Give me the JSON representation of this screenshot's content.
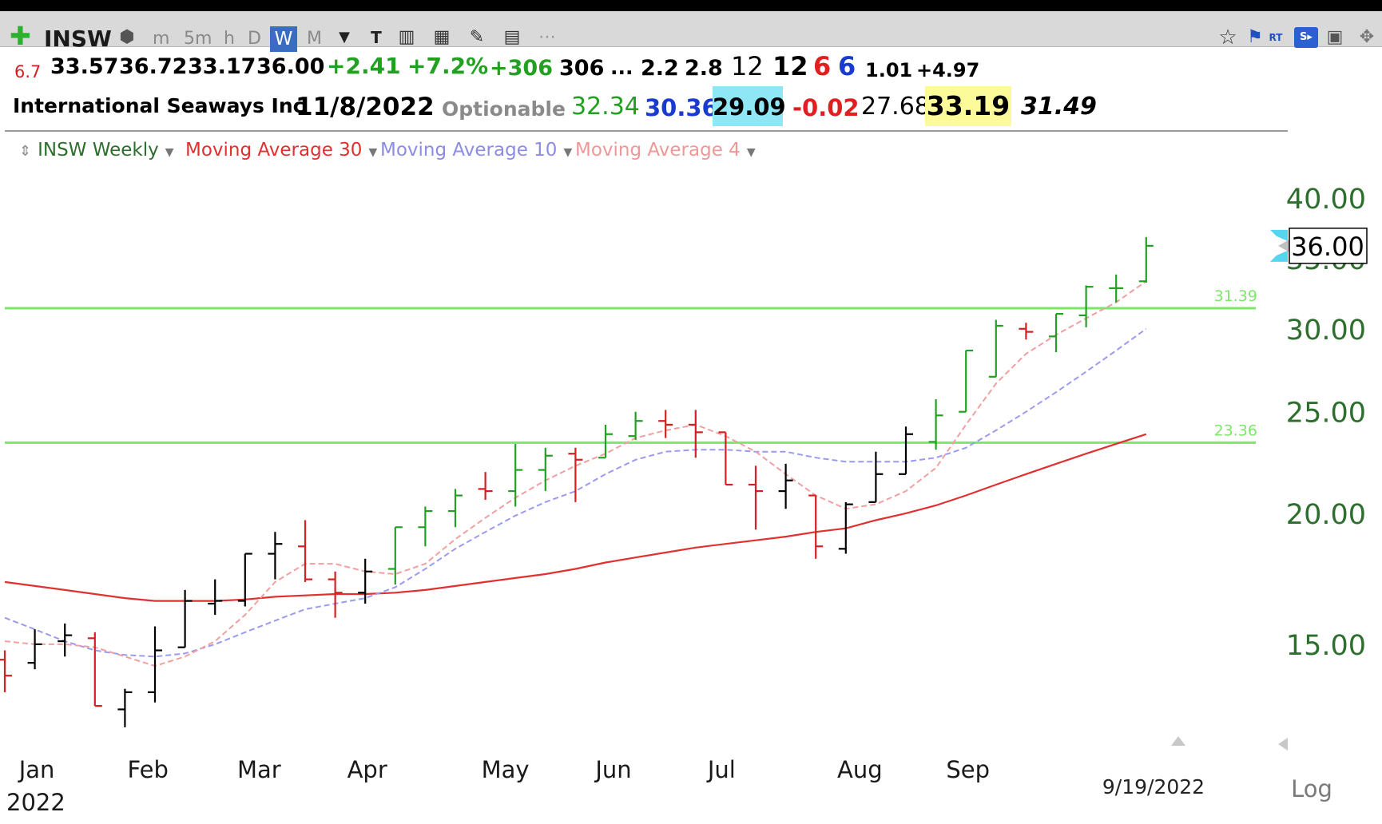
{
  "toolbar": {
    "symbol": "INSW",
    "timeframes": [
      "m",
      "5m",
      "h",
      "D",
      "W",
      "M"
    ],
    "selected_timeframe": "W"
  },
  "quote": {
    "v1": "6.7",
    "open": "33.57",
    "high": "36.72",
    "low": "33.17",
    "close": "36.00",
    "change": "+2.41",
    "change_pct": "+7.2%",
    "v2": "+306",
    "v3": "306",
    "ellipsis": "...",
    "v4": "2.2",
    "v5": "2.8",
    "v6": "12",
    "v7": "12",
    "v8": "6",
    "v9": "6",
    "v10": "1.01",
    "v11": "+4.97",
    "company": "International Seaways Inc",
    "date": "11/8/2022",
    "optionable": "Optionable",
    "w1": "32.34",
    "w2": "30.36",
    "w3": "29.09",
    "w4": "-0.02",
    "w5": "27.68",
    "w6": "33.19",
    "w7": "31.49"
  },
  "legend": {
    "main": "INSW Weekly",
    "ma30": "Moving Average 30",
    "ma10": "Moving Average 10",
    "ma4": "Moving Average 4"
  },
  "colors": {
    "up": "#22a022",
    "down": "#d42020",
    "neutral": "#000000",
    "ma30": "#e03030",
    "ma10": "#9a9af0",
    "ma4": "#f0a0a0",
    "hline": "#7ee66a",
    "axis_text": "#2e6e2e",
    "month_text": "#1a1a1a"
  },
  "chart_data": {
    "type": "ohlc",
    "scale": "log",
    "ylim": [
      12.3,
      43.5
    ],
    "y_ticks": [
      "40.00",
      "35.00",
      "30.00",
      "25.00",
      "20.00",
      "15.00"
    ],
    "last_price_label": "36.00",
    "scale_label": "Log",
    "year_label": "2022",
    "date_label": "9/19/2022",
    "month_labels": [
      "Jan",
      "Feb",
      "Mar",
      "Apr",
      "May",
      "Jun",
      "Jul",
      "Aug",
      "Sep"
    ],
    "horizontal_lines": [
      {
        "value": 31.39,
        "label": "31.39"
      },
      {
        "value": 23.36,
        "label": "23.36"
      }
    ],
    "bars": [
      {
        "o": 14.5,
        "h": 14.8,
        "l": 13.5,
        "c": 14.0,
        "t": "down"
      },
      {
        "o": 14.4,
        "h": 15.5,
        "l": 14.2,
        "c": 15.0,
        "t": "neutral"
      },
      {
        "o": 15.1,
        "h": 15.7,
        "l": 14.6,
        "c": 15.3,
        "t": "neutral"
      },
      {
        "o": 15.2,
        "h": 15.4,
        "l": 13.1,
        "c": 13.1,
        "t": "down"
      },
      {
        "o": 13.0,
        "h": 13.6,
        "l": 12.5,
        "c": 13.5,
        "t": "neutral"
      },
      {
        "o": 13.5,
        "h": 15.6,
        "l": 13.2,
        "c": 14.8,
        "t": "neutral"
      },
      {
        "o": 14.9,
        "h": 16.9,
        "l": 14.9,
        "c": 16.5,
        "t": "neutral"
      },
      {
        "o": 16.4,
        "h": 17.3,
        "l": 16.0,
        "c": 16.5,
        "t": "neutral"
      },
      {
        "o": 16.5,
        "h": 18.3,
        "l": 16.3,
        "c": 18.3,
        "t": "neutral"
      },
      {
        "o": 18.3,
        "h": 19.2,
        "l": 17.3,
        "c": 18.7,
        "t": "neutral"
      },
      {
        "o": 18.6,
        "h": 19.7,
        "l": 17.2,
        "c": 17.3,
        "t": "down"
      },
      {
        "o": 17.3,
        "h": 17.6,
        "l": 15.9,
        "c": 16.8,
        "t": "down"
      },
      {
        "o": 16.8,
        "h": 18.1,
        "l": 16.4,
        "c": 17.6,
        "t": "neutral"
      },
      {
        "o": 17.7,
        "h": 19.4,
        "l": 17.1,
        "c": 19.4,
        "t": "up"
      },
      {
        "o": 19.4,
        "h": 20.3,
        "l": 18.6,
        "c": 20.1,
        "t": "up"
      },
      {
        "o": 20.1,
        "h": 21.1,
        "l": 19.4,
        "c": 20.8,
        "t": "up"
      },
      {
        "o": 21.1,
        "h": 21.9,
        "l": 20.6,
        "c": 21.0,
        "t": "down"
      },
      {
        "o": 21.0,
        "h": 23.3,
        "l": 20.3,
        "c": 22.0,
        "t": "up"
      },
      {
        "o": 22.0,
        "h": 23.1,
        "l": 21.0,
        "c": 22.7,
        "t": "up"
      },
      {
        "o": 22.8,
        "h": 23.1,
        "l": 20.5,
        "c": 22.5,
        "t": "down"
      },
      {
        "o": 22.6,
        "h": 24.3,
        "l": 22.6,
        "c": 23.8,
        "t": "up"
      },
      {
        "o": 23.7,
        "h": 25.0,
        "l": 23.5,
        "c": 24.5,
        "t": "up"
      },
      {
        "o": 24.5,
        "h": 25.1,
        "l": 23.6,
        "c": 24.3,
        "t": "down"
      },
      {
        "o": 24.3,
        "h": 25.1,
        "l": 22.6,
        "c": 23.9,
        "t": "down"
      },
      {
        "o": 23.9,
        "h": 23.9,
        "l": 21.3,
        "c": 21.3,
        "t": "down"
      },
      {
        "o": 21.3,
        "h": 22.2,
        "l": 19.3,
        "c": 21.0,
        "t": "down"
      },
      {
        "o": 21.0,
        "h": 22.3,
        "l": 20.2,
        "c": 21.5,
        "t": "neutral"
      },
      {
        "o": 20.8,
        "h": 20.8,
        "l": 18.1,
        "c": 18.6,
        "t": "down"
      },
      {
        "o": 18.5,
        "h": 20.5,
        "l": 18.3,
        "c": 20.4,
        "t": "neutral"
      },
      {
        "o": 20.5,
        "h": 22.9,
        "l": 20.5,
        "c": 21.8,
        "t": "neutral"
      },
      {
        "o": 21.8,
        "h": 24.2,
        "l": 21.8,
        "c": 23.8,
        "t": "neutral"
      },
      {
        "o": 23.4,
        "h": 25.7,
        "l": 23.0,
        "c": 24.8,
        "t": "up"
      },
      {
        "o": 25.0,
        "h": 28.6,
        "l": 25.0,
        "c": 28.6,
        "t": "up"
      },
      {
        "o": 27.0,
        "h": 30.6,
        "l": 27.0,
        "c": 30.2,
        "t": "up"
      },
      {
        "o": 30.0,
        "h": 30.4,
        "l": 29.3,
        "c": 29.8,
        "t": "down"
      },
      {
        "o": 29.5,
        "h": 31.0,
        "l": 28.5,
        "c": 31.0,
        "t": "up"
      },
      {
        "o": 30.9,
        "h": 33.0,
        "l": 30.1,
        "c": 32.9,
        "t": "up"
      },
      {
        "o": 32.8,
        "h": 33.8,
        "l": 31.8,
        "c": 32.8,
        "t": "up"
      },
      {
        "o": 33.3,
        "h": 36.7,
        "l": 33.2,
        "c": 36.0,
        "t": "up"
      }
    ],
    "series": [
      {
        "name": "Moving Average 30",
        "style": "solid",
        "values": [
          17.2,
          17.05,
          16.9,
          16.75,
          16.6,
          16.5,
          16.5,
          16.5,
          16.55,
          16.65,
          16.7,
          16.75,
          16.75,
          16.8,
          16.9,
          17.05,
          17.2,
          17.35,
          17.5,
          17.7,
          17.95,
          18.15,
          18.35,
          18.55,
          18.7,
          18.85,
          19.0,
          19.2,
          19.35,
          19.7,
          20.0,
          20.35,
          20.8,
          21.3,
          21.8,
          22.3,
          22.8,
          23.3,
          23.8
        ]
      },
      {
        "name": "Moving Average 10",
        "style": "dashed",
        "values": [
          15.9,
          15.5,
          15.1,
          14.8,
          14.65,
          14.6,
          14.7,
          15.0,
          15.4,
          15.8,
          16.2,
          16.4,
          16.6,
          17.0,
          17.7,
          18.5,
          19.2,
          19.9,
          20.5,
          21.0,
          21.8,
          22.5,
          22.9,
          23.0,
          23.0,
          22.9,
          22.9,
          22.6,
          22.4,
          22.4,
          22.4,
          22.6,
          23.1,
          24.0,
          25.0,
          26.1,
          27.3,
          28.6,
          30.0
        ]
      },
      {
        "name": "Moving Average 4",
        "style": "dashed",
        "values": [
          15.1,
          15.0,
          15.0,
          14.9,
          14.6,
          14.3,
          14.6,
          15.1,
          16.0,
          17.2,
          17.9,
          17.9,
          17.6,
          17.5,
          17.9,
          18.9,
          19.8,
          20.7,
          21.5,
          22.2,
          22.8,
          23.6,
          24.0,
          24.3,
          23.7,
          22.9,
          21.8,
          20.8,
          20.2,
          20.4,
          21.0,
          22.1,
          24.3,
          26.6,
          28.4,
          29.6,
          30.7,
          31.8,
          33.3
        ]
      }
    ]
  }
}
